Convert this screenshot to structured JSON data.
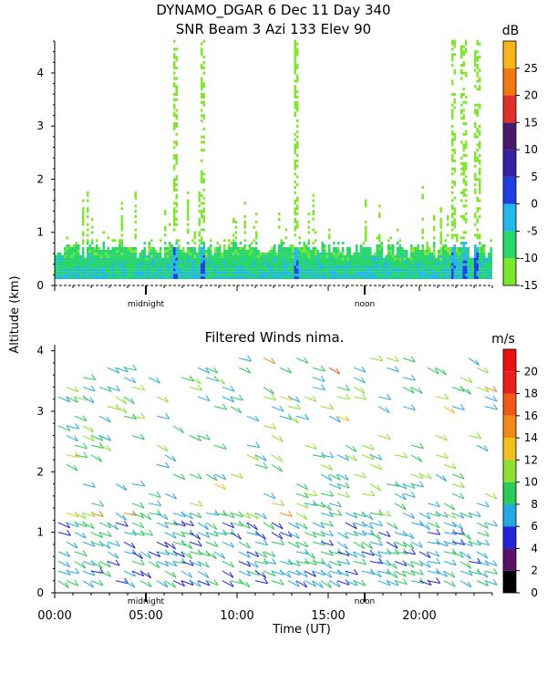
{
  "header": {
    "line1": "DYNAMO_DGAR   6 Dec 11 Day 340",
    "line2": "SNR Beam 3 Azi 133 Elev 90"
  },
  "shared": {
    "ylabel": "Altitude (km)",
    "xlabel": "Time (UT)",
    "midnight_label": "midnight",
    "noon_label": "noon"
  },
  "chart_data": [
    {
      "type": "heatmap",
      "title": "SNR Beam 3 Azi 133 Elev 90",
      "ylim": [
        0,
        4.6
      ],
      "xlim_hours": [
        0,
        24
      ],
      "yticks": [
        0,
        1,
        2,
        3,
        4
      ],
      "colorbar": {
        "unit": "dB",
        "ticks": [
          -15,
          -10,
          -5,
          0,
          5,
          10,
          15,
          20,
          25
        ],
        "bands": [
          {
            "range": [
              -15,
              -10
            ],
            "color": "#7fe62e"
          },
          {
            "range": [
              -10,
              -5
            ],
            "color": "#29d66a"
          },
          {
            "range": [
              -5,
              0
            ],
            "color": "#26b8e8"
          },
          {
            "range": [
              0,
              5
            ],
            "color": "#1f3fe0"
          },
          {
            "range": [
              5,
              10
            ],
            "color": "#3a1ea0"
          },
          {
            "range": [
              10,
              15
            ],
            "color": "#4a1a6a"
          },
          {
            "range": [
              15,
              20
            ],
            "color": "#e0302b"
          },
          {
            "range": [
              20,
              25
            ],
            "color": "#f07a12"
          },
          {
            "range": [
              25,
              30
            ],
            "color": "#f5b51b"
          }
        ]
      },
      "grid": false
    },
    {
      "type": "scatter",
      "title": "Filtered Winds nima.",
      "ylim": [
        0,
        4.1
      ],
      "xlim_hours": [
        0,
        24
      ],
      "yticks": [
        0,
        1,
        2,
        3,
        4
      ],
      "xticks": [
        "00:00",
        "05:00",
        "10:00",
        "15:00",
        "20:00"
      ],
      "xtick_hours": [
        0,
        5,
        10,
        15,
        20
      ],
      "colorbar": {
        "unit": "m/s",
        "ticks": [
          0,
          2,
          4,
          6,
          8,
          10,
          12,
          14,
          16,
          18,
          20
        ],
        "bands": [
          {
            "range": [
              0,
              2
            ],
            "color": "#000000"
          },
          {
            "range": [
              2,
              4
            ],
            "color": "#5a1268"
          },
          {
            "range": [
              4,
              6
            ],
            "color": "#2323d8"
          },
          {
            "range": [
              6,
              8
            ],
            "color": "#28a8e0"
          },
          {
            "range": [
              8,
              10
            ],
            "color": "#2bc85a"
          },
          {
            "range": [
              10,
              12
            ],
            "color": "#8fe030"
          },
          {
            "range": [
              12,
              14
            ],
            "color": "#f0c020"
          },
          {
            "range": [
              14,
              16
            ],
            "color": "#f08a18"
          },
          {
            "range": [
              16,
              18
            ],
            "color": "#f05a18"
          },
          {
            "range": [
              18,
              20
            ],
            "color": "#e82020"
          },
          {
            "range": [
              20,
              22
            ],
            "color": "#e81010"
          }
        ]
      },
      "grid": false
    }
  ]
}
